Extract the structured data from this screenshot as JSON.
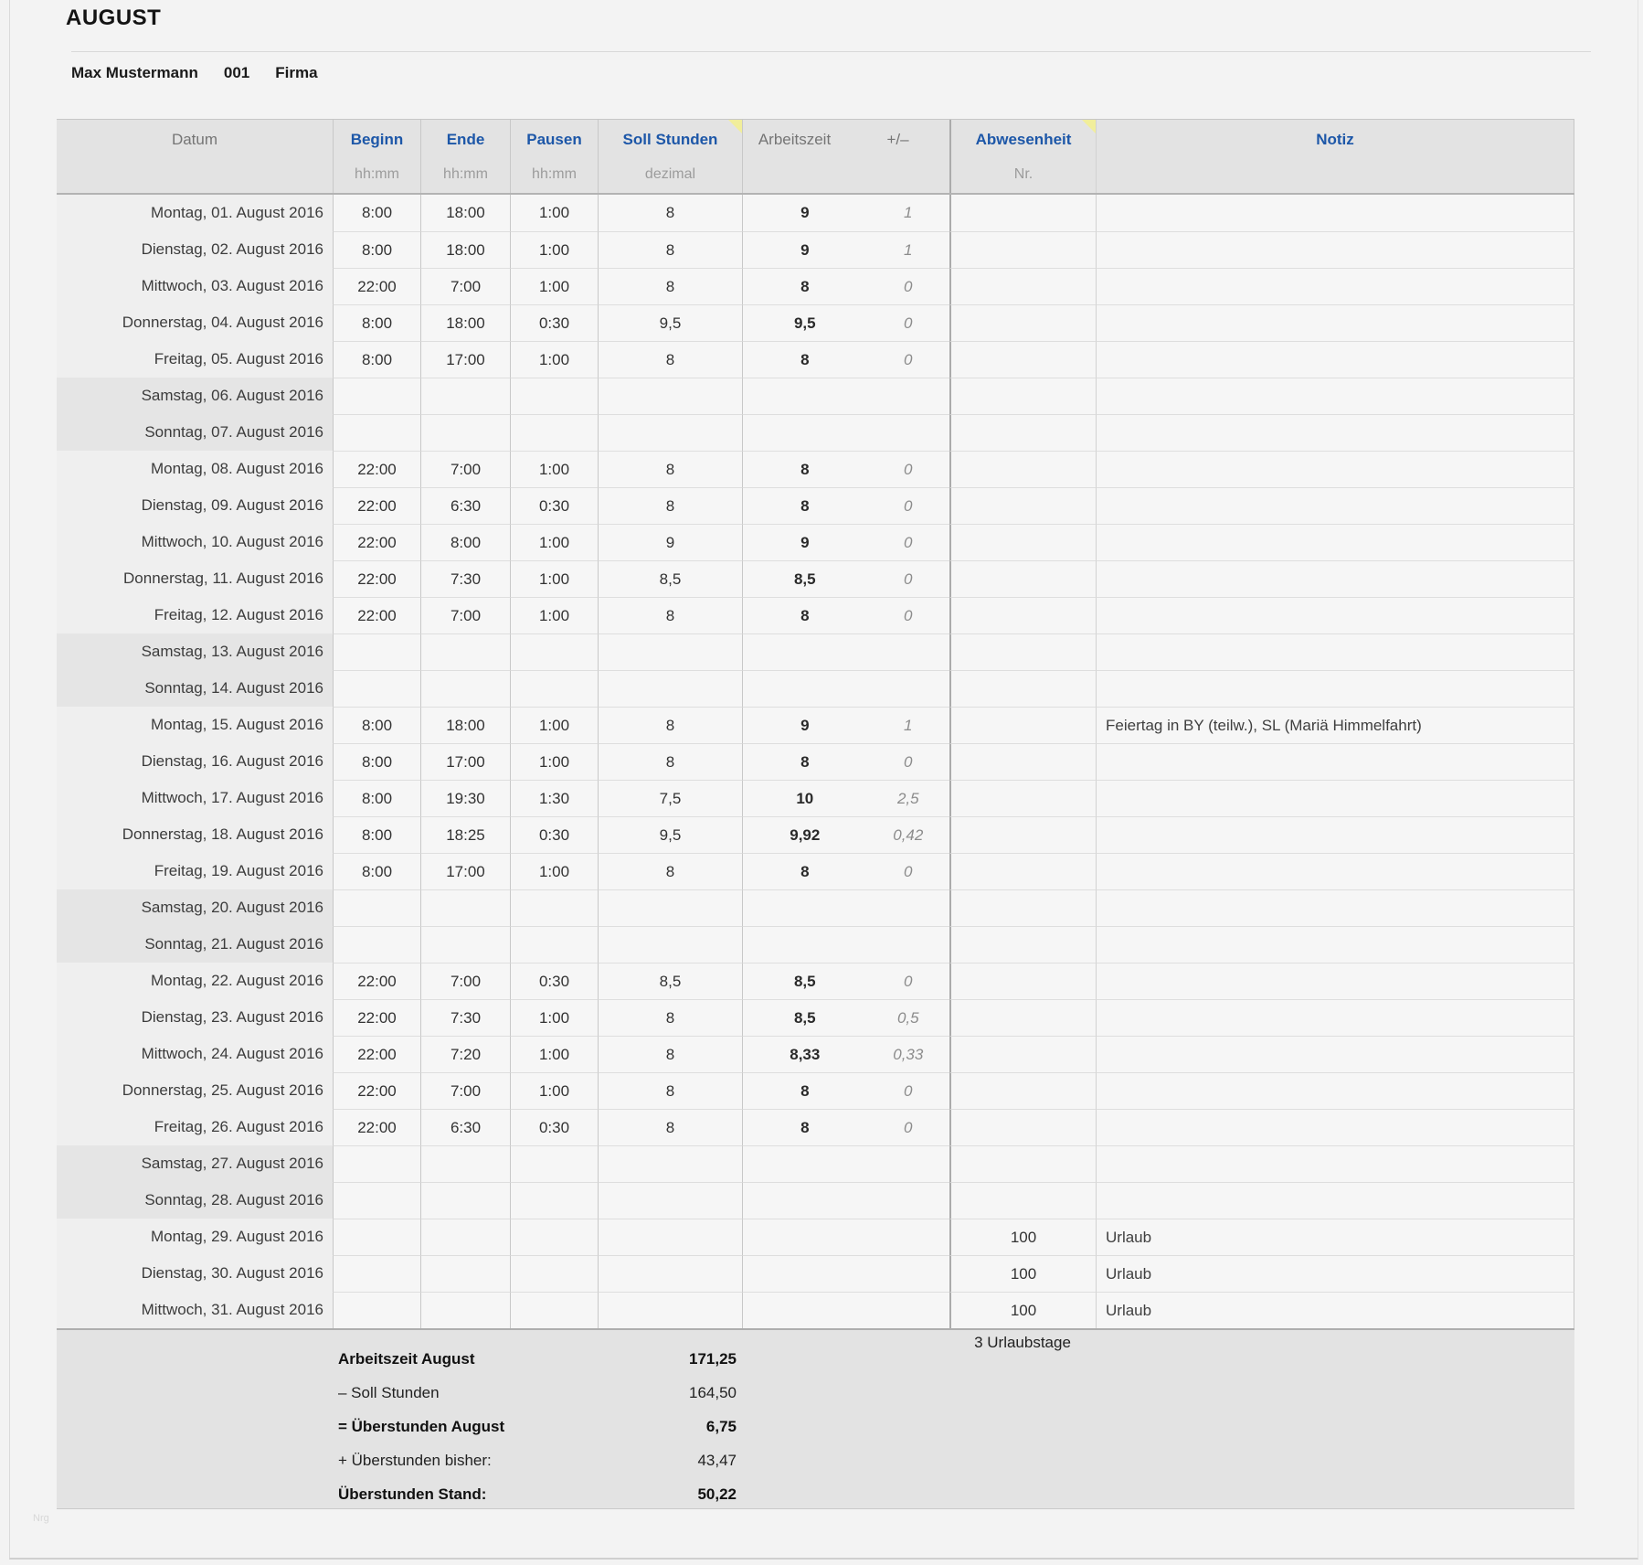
{
  "title": "AUGUST",
  "employee": {
    "name": "Max Mustermann",
    "id": "001",
    "company": "Firma"
  },
  "watermark": "Nrg",
  "table": {
    "headers": {
      "datum": "Datum",
      "beginn": "Beginn",
      "ende": "Ende",
      "pausen": "Pausen",
      "soll": "Soll Stunden",
      "arbeitszeit": "Arbeitszeit",
      "plusminus": "+/–",
      "abwesenheit": "Abwesenheit",
      "notiz": "Notiz",
      "unit_hhmm": "hh:mm",
      "unit_dezimal": "dezimal",
      "unit_nr": "Nr."
    },
    "rows": [
      {
        "datum": "Montag, 01. August 2016",
        "beginn": "8:00",
        "ende": "18:00",
        "pausen": "1:00",
        "soll": "8",
        "arbeitszeit": "9",
        "diff": "1",
        "abwesenheit": "",
        "notiz": "",
        "weekend": false
      },
      {
        "datum": "Dienstag, 02. August 2016",
        "beginn": "8:00",
        "ende": "18:00",
        "pausen": "1:00",
        "soll": "8",
        "arbeitszeit": "9",
        "diff": "1",
        "abwesenheit": "",
        "notiz": "",
        "weekend": false
      },
      {
        "datum": "Mittwoch, 03. August 2016",
        "beginn": "22:00",
        "ende": "7:00",
        "pausen": "1:00",
        "soll": "8",
        "arbeitszeit": "8",
        "diff": "0",
        "abwesenheit": "",
        "notiz": "",
        "weekend": false
      },
      {
        "datum": "Donnerstag, 04. August 2016",
        "beginn": "8:00",
        "ende": "18:00",
        "pausen": "0:30",
        "soll": "9,5",
        "arbeitszeit": "9,5",
        "diff": "0",
        "abwesenheit": "",
        "notiz": "",
        "weekend": false
      },
      {
        "datum": "Freitag, 05. August 2016",
        "beginn": "8:00",
        "ende": "17:00",
        "pausen": "1:00",
        "soll": "8",
        "arbeitszeit": "8",
        "diff": "0",
        "abwesenheit": "",
        "notiz": "",
        "weekend": false
      },
      {
        "datum": "Samstag, 06. August 2016",
        "beginn": "",
        "ende": "",
        "pausen": "",
        "soll": "",
        "arbeitszeit": "",
        "diff": "",
        "abwesenheit": "",
        "notiz": "",
        "weekend": true
      },
      {
        "datum": "Sonntag, 07. August 2016",
        "beginn": "",
        "ende": "",
        "pausen": "",
        "soll": "",
        "arbeitszeit": "",
        "diff": "",
        "abwesenheit": "",
        "notiz": "",
        "weekend": true
      },
      {
        "datum": "Montag, 08. August 2016",
        "beginn": "22:00",
        "ende": "7:00",
        "pausen": "1:00",
        "soll": "8",
        "arbeitszeit": "8",
        "diff": "0",
        "abwesenheit": "",
        "notiz": "",
        "weekend": false
      },
      {
        "datum": "Dienstag, 09. August 2016",
        "beginn": "22:00",
        "ende": "6:30",
        "pausen": "0:30",
        "soll": "8",
        "arbeitszeit": "8",
        "diff": "0",
        "abwesenheit": "",
        "notiz": "",
        "weekend": false
      },
      {
        "datum": "Mittwoch, 10. August 2016",
        "beginn": "22:00",
        "ende": "8:00",
        "pausen": "1:00",
        "soll": "9",
        "arbeitszeit": "9",
        "diff": "0",
        "abwesenheit": "",
        "notiz": "",
        "weekend": false
      },
      {
        "datum": "Donnerstag, 11. August 2016",
        "beginn": "22:00",
        "ende": "7:30",
        "pausen": "1:00",
        "soll": "8,5",
        "arbeitszeit": "8,5",
        "diff": "0",
        "abwesenheit": "",
        "notiz": "",
        "weekend": false
      },
      {
        "datum": "Freitag, 12. August 2016",
        "beginn": "22:00",
        "ende": "7:00",
        "pausen": "1:00",
        "soll": "8",
        "arbeitszeit": "8",
        "diff": "0",
        "abwesenheit": "",
        "notiz": "",
        "weekend": false
      },
      {
        "datum": "Samstag, 13. August 2016",
        "beginn": "",
        "ende": "",
        "pausen": "",
        "soll": "",
        "arbeitszeit": "",
        "diff": "",
        "abwesenheit": "",
        "notiz": "",
        "weekend": true
      },
      {
        "datum": "Sonntag, 14. August 2016",
        "beginn": "",
        "ende": "",
        "pausen": "",
        "soll": "",
        "arbeitszeit": "",
        "diff": "",
        "abwesenheit": "",
        "notiz": "",
        "weekend": true
      },
      {
        "datum": "Montag, 15. August 2016",
        "beginn": "8:00",
        "ende": "18:00",
        "pausen": "1:00",
        "soll": "8",
        "arbeitszeit": "9",
        "diff": "1",
        "abwesenheit": "",
        "notiz": "Feiertag in BY (teilw.), SL (Mariä Himmelfahrt)",
        "weekend": false
      },
      {
        "datum": "Dienstag, 16. August 2016",
        "beginn": "8:00",
        "ende": "17:00",
        "pausen": "1:00",
        "soll": "8",
        "arbeitszeit": "8",
        "diff": "0",
        "abwesenheit": "",
        "notiz": "",
        "weekend": false
      },
      {
        "datum": "Mittwoch, 17. August 2016",
        "beginn": "8:00",
        "ende": "19:30",
        "pausen": "1:30",
        "soll": "7,5",
        "arbeitszeit": "10",
        "diff": "2,5",
        "abwesenheit": "",
        "notiz": "",
        "weekend": false
      },
      {
        "datum": "Donnerstag, 18. August 2016",
        "beginn": "8:00",
        "ende": "18:25",
        "pausen": "0:30",
        "soll": "9,5",
        "arbeitszeit": "9,92",
        "diff": "0,42",
        "abwesenheit": "",
        "notiz": "",
        "weekend": false
      },
      {
        "datum": "Freitag, 19. August 2016",
        "beginn": "8:00",
        "ende": "17:00",
        "pausen": "1:00",
        "soll": "8",
        "arbeitszeit": "8",
        "diff": "0",
        "abwesenheit": "",
        "notiz": "",
        "weekend": false
      },
      {
        "datum": "Samstag, 20. August 2016",
        "beginn": "",
        "ende": "",
        "pausen": "",
        "soll": "",
        "arbeitszeit": "",
        "diff": "",
        "abwesenheit": "",
        "notiz": "",
        "weekend": true
      },
      {
        "datum": "Sonntag, 21. August 2016",
        "beginn": "",
        "ende": "",
        "pausen": "",
        "soll": "",
        "arbeitszeit": "",
        "diff": "",
        "abwesenheit": "",
        "notiz": "",
        "weekend": true
      },
      {
        "datum": "Montag, 22. August 2016",
        "beginn": "22:00",
        "ende": "7:00",
        "pausen": "0:30",
        "soll": "8,5",
        "arbeitszeit": "8,5",
        "diff": "0",
        "abwesenheit": "",
        "notiz": "",
        "weekend": false
      },
      {
        "datum": "Dienstag, 23. August 2016",
        "beginn": "22:00",
        "ende": "7:30",
        "pausen": "1:00",
        "soll": "8",
        "arbeitszeit": "8,5",
        "diff": "0,5",
        "abwesenheit": "",
        "notiz": "",
        "weekend": false
      },
      {
        "datum": "Mittwoch, 24. August 2016",
        "beginn": "22:00",
        "ende": "7:20",
        "pausen": "1:00",
        "soll": "8",
        "arbeitszeit": "8,33",
        "diff": "0,33",
        "abwesenheit": "",
        "notiz": "",
        "weekend": false
      },
      {
        "datum": "Donnerstag, 25. August 2016",
        "beginn": "22:00",
        "ende": "7:00",
        "pausen": "1:00",
        "soll": "8",
        "arbeitszeit": "8",
        "diff": "0",
        "abwesenheit": "",
        "notiz": "",
        "weekend": false
      },
      {
        "datum": "Freitag, 26. August 2016",
        "beginn": "22:00",
        "ende": "6:30",
        "pausen": "0:30",
        "soll": "8",
        "arbeitszeit": "8",
        "diff": "0",
        "abwesenheit": "",
        "notiz": "",
        "weekend": false
      },
      {
        "datum": "Samstag, 27. August 2016",
        "beginn": "",
        "ende": "",
        "pausen": "",
        "soll": "",
        "arbeitszeit": "",
        "diff": "",
        "abwesenheit": "",
        "notiz": "",
        "weekend": true
      },
      {
        "datum": "Sonntag, 28. August 2016",
        "beginn": "",
        "ende": "",
        "pausen": "",
        "soll": "",
        "arbeitszeit": "",
        "diff": "",
        "abwesenheit": "",
        "notiz": "",
        "weekend": true
      },
      {
        "datum": "Montag, 29. August 2016",
        "beginn": "",
        "ende": "",
        "pausen": "",
        "soll": "",
        "arbeitszeit": "",
        "diff": "",
        "abwesenheit": "100",
        "notiz": "Urlaub",
        "weekend": false
      },
      {
        "datum": "Dienstag, 30. August 2016",
        "beginn": "",
        "ende": "",
        "pausen": "",
        "soll": "",
        "arbeitszeit": "",
        "diff": "",
        "abwesenheit": "100",
        "notiz": "Urlaub",
        "weekend": false
      },
      {
        "datum": "Mittwoch, 31. August 2016",
        "beginn": "",
        "ende": "",
        "pausen": "",
        "soll": "",
        "arbeitszeit": "",
        "diff": "",
        "abwesenheit": "100",
        "notiz": "Urlaub",
        "weekend": false
      }
    ]
  },
  "summary": {
    "urlaubstage": "3 Urlaubstage",
    "lines": [
      {
        "label": "Arbeitszeit August",
        "value": "171,25",
        "bold": true
      },
      {
        "label": "– Soll Stunden",
        "value": "164,50",
        "bold": false
      },
      {
        "label": "= Überstunden August",
        "value": "6,75",
        "bold": true
      },
      {
        "label": "+ Überstunden bisher:",
        "value": "43,47",
        "bold": false
      },
      {
        "label": "Überstunden Stand:",
        "value": "50,22",
        "bold": true
      }
    ]
  },
  "colors": {
    "header_text_blue": "#1d57a8",
    "comment_marker_yellow": "#f1ee9b",
    "header_bg": "#e3e3e3",
    "weekend_bg": "#e5e5e5",
    "cell_bg": "#f6f6f6",
    "page_bg": "#f3f3f3"
  }
}
